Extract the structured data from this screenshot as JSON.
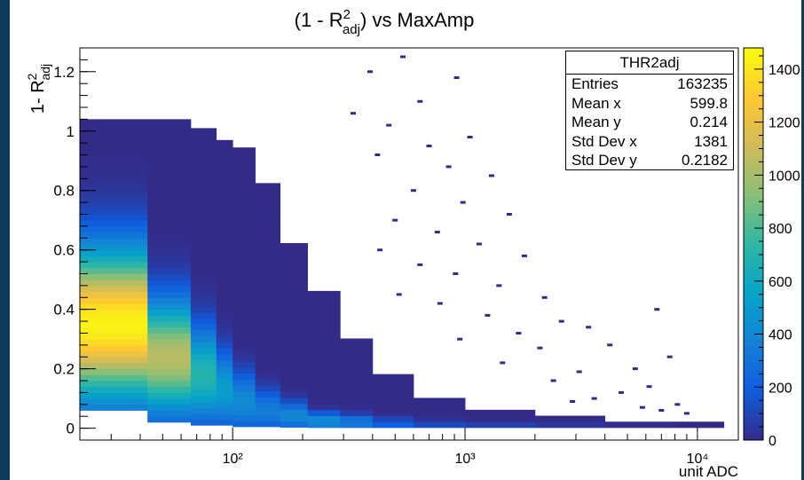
{
  "chart_data": {
    "type": "heatmap",
    "title": "(1 - R²_adj) vs MaxAmp",
    "xlabel": "unit ADC",
    "ylabel": "1- R²_adj",
    "x_scale": "log",
    "xlim": [
      22,
      15000
    ],
    "ylim": [
      -0.04,
      1.28
    ],
    "x_ticks": [
      {
        "value": 100,
        "label": "10²"
      },
      {
        "value": 1000,
        "label": "10³"
      },
      {
        "value": 10000,
        "label": "10⁴"
      }
    ],
    "y_ticks": [
      0,
      0.2,
      0.4,
      0.6,
      0.8,
      1,
      1.2
    ],
    "y_tick_labels": [
      "0",
      "0.2",
      "0.4",
      "0.6",
      "0.8",
      "1",
      "1.2"
    ],
    "z_range": [
      0,
      1480
    ],
    "z_ticks": [
      0,
      200,
      400,
      600,
      800,
      1000,
      1200,
      1400
    ],
    "colormap": [
      "#352a87",
      "#0f5cdd",
      "#1481d6",
      "#06a4ca",
      "#2eb7a4",
      "#87bf77",
      "#d1bb59",
      "#fec832",
      "#f9fb0e"
    ],
    "columns": [
      {
        "x0": 22,
        "x1": 43,
        "ymin": 0.06,
        "ymax": 1.04,
        "peak_y": 0.35,
        "peak_z": 1450,
        "spread": 0.17
      },
      {
        "x0": 43,
        "x1": 66,
        "ymin": 0.02,
        "ymax": 1.04,
        "peak_y": 0.24,
        "peak_z": 1050,
        "spread": 0.13
      },
      {
        "x0": 66,
        "x1": 85,
        "ymin": 0.01,
        "ymax": 1.0,
        "peak_y": 0.18,
        "peak_z": 700,
        "spread": 0.11
      },
      {
        "x0": 85,
        "x1": 100,
        "ymin": 0.01,
        "ymax": 0.97,
        "peak_y": 0.13,
        "peak_z": 520,
        "spread": 0.09
      },
      {
        "x0": 100,
        "x1": 125,
        "ymin": 0.005,
        "ymax": 0.93,
        "peak_y": 0.09,
        "peak_z": 420,
        "spread": 0.07
      },
      {
        "x0": 125,
        "x1": 160,
        "ymin": 0.005,
        "ymax": 0.82,
        "peak_y": 0.06,
        "peak_z": 350,
        "spread": 0.05
      },
      {
        "x0": 160,
        "x1": 210,
        "ymin": 0.003,
        "ymax": 0.62,
        "peak_y": 0.04,
        "peak_z": 400,
        "spread": 0.035
      },
      {
        "x0": 210,
        "x1": 290,
        "ymin": 0.002,
        "ymax": 0.45,
        "peak_y": 0.025,
        "peak_z": 450,
        "spread": 0.02
      },
      {
        "x0": 290,
        "x1": 400,
        "ymin": 0.002,
        "ymax": 0.3,
        "peak_y": 0.02,
        "peak_z": 350,
        "spread": 0.018
      },
      {
        "x0": 400,
        "x1": 600,
        "ymin": 0.002,
        "ymax": 0.18,
        "peak_y": 0.015,
        "peak_z": 200,
        "spread": 0.015
      },
      {
        "x0": 600,
        "x1": 1000,
        "ymin": 0.002,
        "ymax": 0.1,
        "peak_y": 0.012,
        "peak_z": 120,
        "spread": 0.012
      },
      {
        "x0": 1000,
        "x1": 2000,
        "ymin": 0.002,
        "ymax": 0.06,
        "peak_y": 0.01,
        "peak_z": 80,
        "spread": 0.01
      },
      {
        "x0": 2000,
        "x1": 4000,
        "ymin": 0.002,
        "ymax": 0.035,
        "peak_y": 0.008,
        "peak_z": 50,
        "spread": 0.008
      },
      {
        "x0": 4000,
        "x1": 8000,
        "ymin": 0.002,
        "ymax": 0.022,
        "peak_y": 0.006,
        "peak_z": 25,
        "spread": 0.006
      },
      {
        "x0": 8000,
        "x1": 13000,
        "ymin": 0.002,
        "ymax": 0.015,
        "peak_y": 0.005,
        "peak_z": 8,
        "spread": 0.005
      }
    ],
    "isolated_points": [
      [
        540,
        1.25
      ],
      [
        390,
        1.2
      ],
      [
        920,
        1.18
      ],
      [
        640,
        1.1
      ],
      [
        330,
        1.06
      ],
      [
        1050,
        0.98
      ],
      [
        470,
        1.02
      ],
      [
        700,
        0.95
      ],
      [
        420,
        0.92
      ],
      [
        850,
        0.88
      ],
      [
        1300,
        0.85
      ],
      [
        600,
        0.8
      ],
      [
        980,
        0.76
      ],
      [
        1550,
        0.72
      ],
      [
        500,
        0.7
      ],
      [
        760,
        0.66
      ],
      [
        1150,
        0.62
      ],
      [
        430,
        0.6
      ],
      [
        1800,
        0.58
      ],
      [
        640,
        0.55
      ],
      [
        910,
        0.52
      ],
      [
        1400,
        0.48
      ],
      [
        2200,
        0.44
      ],
      [
        520,
        0.45
      ],
      [
        780,
        0.42
      ],
      [
        1250,
        0.38
      ],
      [
        2600,
        0.36
      ],
      [
        3400,
        0.34
      ],
      [
        6700,
        0.4
      ],
      [
        1700,
        0.32
      ],
      [
        950,
        0.3
      ],
      [
        4200,
        0.28
      ],
      [
        2100,
        0.27
      ],
      [
        7600,
        0.24
      ],
      [
        5400,
        0.2
      ],
      [
        3100,
        0.19
      ],
      [
        1450,
        0.22
      ],
      [
        2400,
        0.16
      ],
      [
        6200,
        0.14
      ],
      [
        4700,
        0.12
      ],
      [
        3600,
        0.1
      ],
      [
        8200,
        0.08
      ],
      [
        5800,
        0.07
      ],
      [
        7000,
        0.06
      ],
      [
        9000,
        0.05
      ],
      [
        2900,
        0.09
      ]
    ]
  },
  "stats_box": {
    "title": "THR2adj",
    "rows": [
      {
        "label": "Entries",
        "value": "163235"
      },
      {
        "label": "Mean x",
        "value": "599.8"
      },
      {
        "label": "Mean y",
        "value": "0.214"
      },
      {
        "label": "Std Dev x",
        "value": "1381"
      },
      {
        "label": "Std Dev y",
        "value": "0.2182"
      }
    ]
  },
  "title_parts": {
    "lead": "(1 - R",
    "sup": "2",
    "sub": "adj",
    "tail": ") vs MaxAmp"
  },
  "ylabel_parts": {
    "lead": "1- R",
    "sup": "2",
    "sub": "adj"
  },
  "xlabel": "unit ADC"
}
